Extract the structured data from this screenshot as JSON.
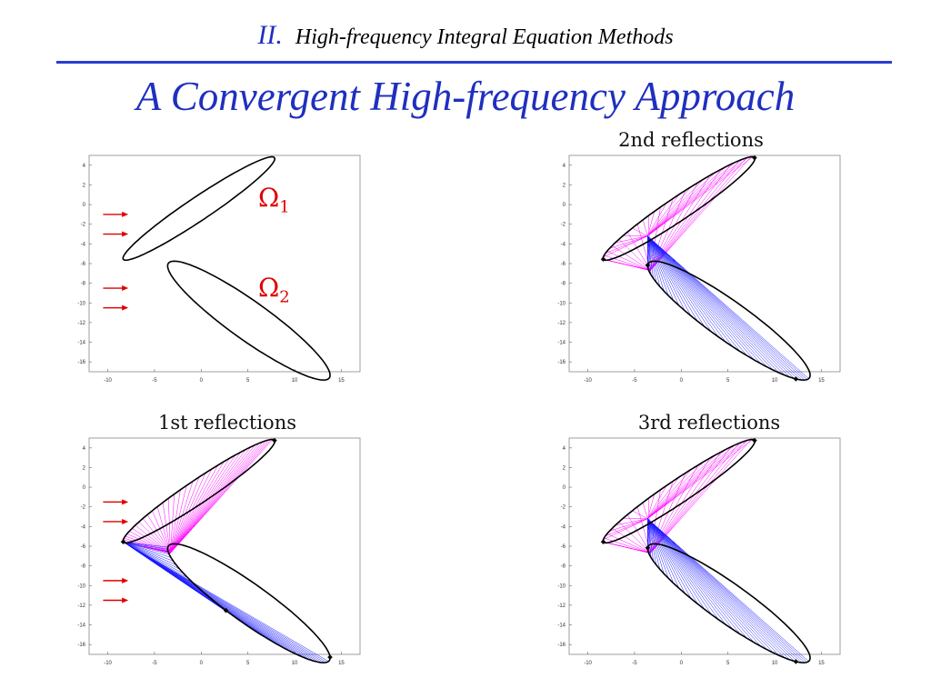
{
  "header": {
    "roman": "II.",
    "section": "High-frequency Integral Equation Methods"
  },
  "title": "A Convergent High-frequency Approach",
  "colors": {
    "accent": "#1f2fbf",
    "rays_obstacle1": "#ff00ff",
    "rays_obstacle2": "#1a1aff",
    "arrows": "#e00000"
  },
  "plots": [
    {
      "id": "geometry",
      "title": "",
      "labels": {
        "omega1": "Ω",
        "omega1_sub": "1",
        "omega2": "Ω",
        "omega2_sub": "2"
      }
    },
    {
      "id": "second",
      "title": "2nd reflections"
    },
    {
      "id": "first",
      "title": "1st reflections"
    },
    {
      "id": "third",
      "title": "3rd reflections"
    }
  ],
  "chart_data": [
    {
      "type": "scatter",
      "title": "",
      "xlim": [
        -12,
        17
      ],
      "ylim": [
        -17,
        5
      ],
      "xticks": [
        -10,
        -5,
        0,
        5,
        10,
        15
      ],
      "yticks": [
        4,
        2,
        0,
        -2,
        -4,
        -6,
        -8,
        -10,
        -12,
        -14,
        -16
      ],
      "obstacles": [
        {
          "name": "Ω1",
          "center": [
            -0.25,
            -0.4
          ],
          "semi_axes": [
            9.6,
            1.2
          ],
          "angle_deg": 32.5
        },
        {
          "name": "Ω2",
          "center": [
            5.1,
            -11.8
          ],
          "semi_axes": [
            10.4,
            2.0
          ],
          "angle_deg": -34.0
        }
      ],
      "incident_arrows_y": [
        -1.0,
        -3.0,
        -8.5,
        -10.5
      ]
    },
    {
      "type": "scatter",
      "title": "2nd reflections",
      "xlim": [
        -12,
        17
      ],
      "ylim": [
        -17,
        5
      ],
      "xticks": [
        -10,
        -5,
        0,
        5,
        10,
        15
      ],
      "yticks": [
        4,
        2,
        0,
        -2,
        -4,
        -6,
        -8,
        -10,
        -12,
        -14,
        -16
      ]
    },
    {
      "type": "scatter",
      "title": "1st reflections",
      "xlim": [
        -12,
        17
      ],
      "ylim": [
        -17,
        5
      ],
      "xticks": [
        -10,
        -5,
        0,
        5,
        10,
        15
      ],
      "yticks": [
        4,
        2,
        0,
        -2,
        -4,
        -6,
        -8,
        -10,
        -12,
        -14,
        -16
      ],
      "incident_arrows_y": [
        -1.5,
        -3.5,
        -9.5,
        -11.5
      ]
    },
    {
      "type": "scatter",
      "title": "3rd reflections",
      "xlim": [
        -12,
        17
      ],
      "ylim": [
        -17,
        5
      ],
      "xticks": [
        -10,
        -5,
        0,
        5,
        10,
        15
      ],
      "yticks": [
        4,
        2,
        0,
        -2,
        -4,
        -6,
        -8,
        -10,
        -12,
        -14,
        -16
      ]
    }
  ]
}
